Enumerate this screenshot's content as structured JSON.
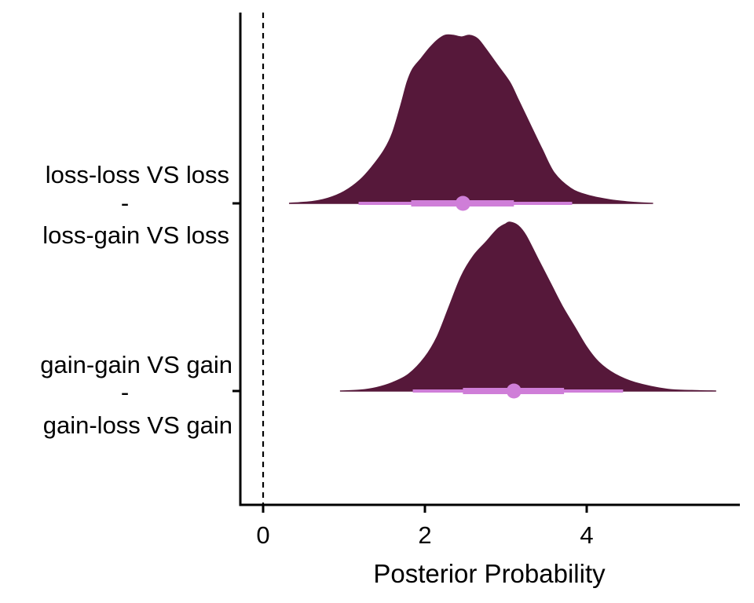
{
  "chart_data": {
    "type": "area",
    "subtype": "half-eye (density + interval) plot",
    "title": "",
    "xlabel": "Posterior Probability",
    "ylabel": "",
    "xlim": [
      -0.28,
      5.8
    ],
    "x_ticks": [
      "0",
      "2",
      "4"
    ],
    "grid": false,
    "legend": "none",
    "reference_line": {
      "x": 0,
      "style": "dashed"
    },
    "colors": {
      "density": "#56183a",
      "interval": "#cf7ed8"
    },
    "categories": [
      {
        "line1": "loss-loss VS loss",
        "sep": "-",
        "line2": "loss-gain VS loss"
      },
      {
        "line1": "gain-gain VS gain",
        "sep": "-",
        "line2": "gain-loss VS gain"
      }
    ],
    "series": [
      {
        "median": 2.47,
        "interval_66": [
          1.83,
          3.1
        ],
        "interval_95": [
          1.18,
          3.82
        ],
        "density": [
          [
            0.32,
            0.0
          ],
          [
            0.6,
            0.01
          ],
          [
            0.8,
            0.03
          ],
          [
            1.0,
            0.07
          ],
          [
            1.2,
            0.14
          ],
          [
            1.35,
            0.22
          ],
          [
            1.5,
            0.32
          ],
          [
            1.6,
            0.42
          ],
          [
            1.7,
            0.58
          ],
          [
            1.78,
            0.72
          ],
          [
            1.85,
            0.8
          ],
          [
            1.95,
            0.86
          ],
          [
            2.05,
            0.92
          ],
          [
            2.15,
            0.97
          ],
          [
            2.25,
            1.0
          ],
          [
            2.35,
            1.0
          ],
          [
            2.45,
            0.99
          ],
          [
            2.55,
            1.0
          ],
          [
            2.65,
            0.98
          ],
          [
            2.75,
            0.92
          ],
          [
            2.9,
            0.82
          ],
          [
            3.05,
            0.72
          ],
          [
            3.15,
            0.62
          ],
          [
            3.3,
            0.47
          ],
          [
            3.45,
            0.32
          ],
          [
            3.6,
            0.18
          ],
          [
            3.8,
            0.09
          ],
          [
            4.0,
            0.05
          ],
          [
            4.3,
            0.02
          ],
          [
            4.6,
            0.005
          ],
          [
            4.82,
            0.0
          ]
        ]
      },
      {
        "median": 3.1,
        "interval_66": [
          2.47,
          3.72
        ],
        "interval_95": [
          1.85,
          4.45
        ],
        "density": [
          [
            0.95,
            0.0
          ],
          [
            1.2,
            0.005
          ],
          [
            1.4,
            0.02
          ],
          [
            1.6,
            0.05
          ],
          [
            1.8,
            0.1
          ],
          [
            2.0,
            0.2
          ],
          [
            2.15,
            0.32
          ],
          [
            2.3,
            0.5
          ],
          [
            2.45,
            0.68
          ],
          [
            2.6,
            0.8
          ],
          [
            2.75,
            0.88
          ],
          [
            2.9,
            0.96
          ],
          [
            3.0,
            0.99
          ],
          [
            3.05,
            1.0
          ],
          [
            3.15,
            0.98
          ],
          [
            3.25,
            0.92
          ],
          [
            3.4,
            0.78
          ],
          [
            3.55,
            0.64
          ],
          [
            3.7,
            0.5
          ],
          [
            3.85,
            0.38
          ],
          [
            4.0,
            0.26
          ],
          [
            4.15,
            0.17
          ],
          [
            4.35,
            0.1
          ],
          [
            4.6,
            0.05
          ],
          [
            5.0,
            0.01
          ],
          [
            5.3,
            0.003
          ],
          [
            5.6,
            0.0
          ]
        ]
      }
    ]
  }
}
